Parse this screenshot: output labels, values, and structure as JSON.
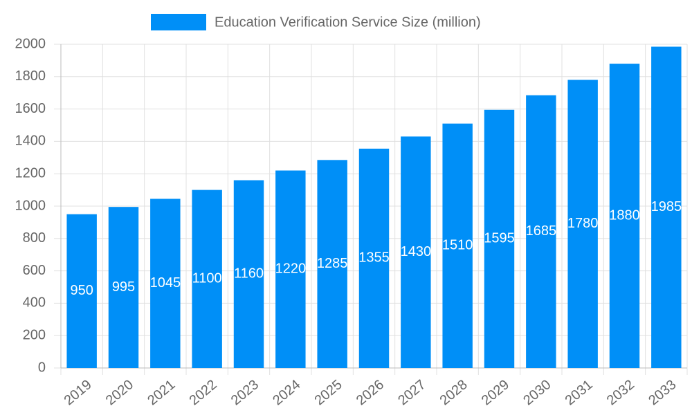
{
  "chart_data": {
    "type": "bar",
    "categories": [
      "2019",
      "2020",
      "2021",
      "2022",
      "2023",
      "2024",
      "2025",
      "2026",
      "2027",
      "2028",
      "2029",
      "2030",
      "2031",
      "2032",
      "2033"
    ],
    "series": [
      {
        "name": "Education Verification Service Size (million)",
        "color": "#008ff7",
        "values": [
          950,
          995,
          1045,
          1100,
          1160,
          1220,
          1285,
          1355,
          1430,
          1510,
          1595,
          1685,
          1780,
          1880,
          1985
        ]
      }
    ],
    "ylim": [
      0,
      2000
    ],
    "yticks": [
      0,
      200,
      400,
      600,
      800,
      1000,
      1200,
      1400,
      1600,
      1800,
      2000
    ],
    "grid": true,
    "legend": "top"
  }
}
